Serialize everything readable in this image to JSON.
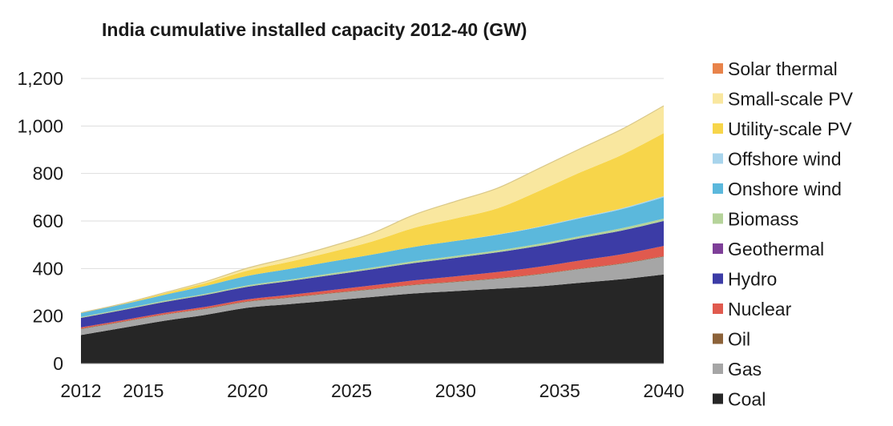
{
  "chart_data": {
    "type": "area",
    "stacked": true,
    "title": "India cumulative installed capacity 2012-40 (GW)",
    "xlabel": "",
    "ylabel": "",
    "x": [
      2012,
      2014,
      2016,
      2018,
      2020,
      2022,
      2024,
      2026,
      2028,
      2030,
      2032,
      2034,
      2036,
      2038,
      2040
    ],
    "xlim": [
      2012,
      2040
    ],
    "ylim": [
      0,
      1200
    ],
    "x_ticks": [
      2012,
      2015,
      2020,
      2025,
      2030,
      2035,
      2040
    ],
    "x_tick_labels": [
      "2012",
      "2015",
      "2020",
      "2025",
      "2030",
      "2035",
      "2040"
    ],
    "y_ticks": [
      0,
      200,
      400,
      600,
      800,
      1000,
      1200
    ],
    "y_tick_labels": [
      "0",
      "200",
      "400",
      "600",
      "800",
      "1,000",
      "1,200"
    ],
    "grid": "horizontal",
    "legend_position": "right",
    "series": [
      {
        "name": "Coal",
        "color": "#262626",
        "values": [
          120,
          150,
          180,
          205,
          235,
          250,
          265,
          280,
          295,
          305,
          315,
          325,
          340,
          355,
          375
        ]
      },
      {
        "name": "Gas",
        "color": "#a6a6a6",
        "values": [
          25,
          25,
          25,
          25,
          25,
          27,
          30,
          32,
          35,
          38,
          42,
          50,
          58,
          65,
          75
        ]
      },
      {
        "name": "Oil",
        "color": "#8c6239",
        "values": [
          2,
          2,
          2,
          2,
          2,
          2,
          2,
          2,
          2,
          2,
          2,
          2,
          2,
          2,
          2
        ]
      },
      {
        "name": "Nuclear",
        "color": "#e05a4e",
        "values": [
          5,
          5,
          6,
          7,
          8,
          10,
          12,
          15,
          18,
          22,
          26,
          30,
          34,
          38,
          43
        ]
      },
      {
        "name": "Geothermal",
        "color": "#7e3f98",
        "values": [
          0,
          0,
          0,
          0,
          0,
          0,
          0,
          0,
          0,
          0,
          0,
          0,
          0,
          0,
          0
        ]
      },
      {
        "name": "Hydro",
        "color": "#3c3ca6",
        "values": [
          40,
          43,
          46,
          50,
          53,
          58,
          63,
          68,
          73,
          78,
          83,
          88,
          94,
          100,
          105
        ]
      },
      {
        "name": "Biomass",
        "color": "#b5d39a",
        "values": [
          4,
          4,
          5,
          5,
          6,
          6,
          7,
          7,
          8,
          8,
          8,
          9,
          9,
          10,
          10
        ]
      },
      {
        "name": "Onshore wind",
        "color": "#5bb8dc",
        "values": [
          18,
          20,
          25,
          33,
          40,
          45,
          50,
          55,
          60,
          63,
          66,
          70,
          75,
          80,
          90
        ]
      },
      {
        "name": "Offshore wind",
        "color": "#a8d4ec",
        "values": [
          0,
          0,
          0,
          0,
          0,
          0,
          0,
          0,
          0,
          0,
          1,
          2,
          3,
          4,
          5
        ]
      },
      {
        "name": "Utility-scale PV",
        "color": "#f7d54a",
        "values": [
          0,
          2,
          6,
          12,
          22,
          30,
          40,
          55,
          80,
          95,
          110,
          150,
          190,
          225,
          265
        ]
      },
      {
        "name": "Small-scale PV",
        "color": "#f9e79f",
        "values": [
          0,
          1,
          3,
          6,
          11,
          17,
          24,
          35,
          55,
          72,
          85,
          95,
          100,
          108,
          115
        ]
      },
      {
        "name": "Solar thermal",
        "color": "#e8834a",
        "values": [
          0,
          0,
          0,
          0,
          0,
          0,
          0,
          0,
          0,
          0,
          0,
          0,
          0,
          0,
          0
        ]
      }
    ],
    "legend_order": [
      "Solar thermal",
      "Small-scale PV",
      "Utility-scale PV",
      "Offshore wind",
      "Onshore wind",
      "Biomass",
      "Geothermal",
      "Hydro",
      "Nuclear",
      "Oil",
      "Gas",
      "Coal"
    ]
  }
}
